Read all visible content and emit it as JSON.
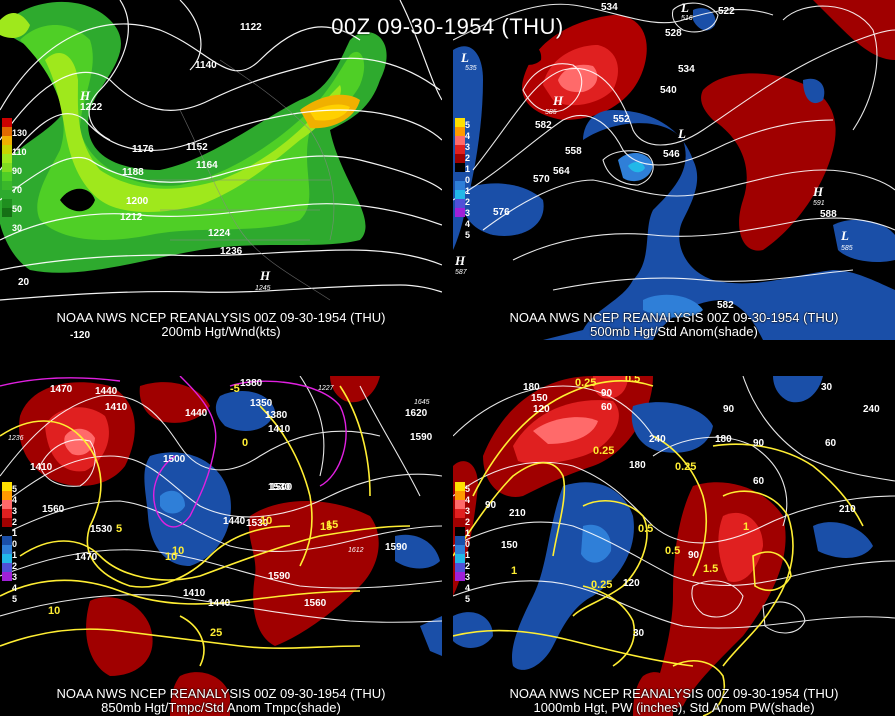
{
  "main_title": "00Z 09-30-1954 (THU)",
  "panels": [
    {
      "id": "p1",
      "caption_line1": "NOAA NWS NCEP REANALYSIS 00Z 09-30-1954 (THU)",
      "caption_line2": "200mb Hgt/Wnd(kts)",
      "legend": [
        "130",
        "110",
        "90",
        "70",
        "50",
        "30"
      ],
      "legend_colors": [
        "#cc0000",
        "#e06a00",
        "#c8d400",
        "#9fe81c",
        "#4fcf26",
        "#2eaa2e"
      ],
      "contour_labels": [
        "1122",
        "1140",
        "1222",
        "1176",
        "1152",
        "1164",
        "1188",
        "1200",
        "1212",
        "1224",
        "1236",
        "1245"
      ],
      "lon_labels": [
        "-120",
        "20"
      ],
      "highs": [
        "H",
        "H"
      ]
    },
    {
      "id": "p2",
      "caption_line1": "NOAA NWS NCEP REANALYSIS 00Z 09-30-1954 (THU)",
      "caption_line2": "500mb Hgt/Std Anom(shade)",
      "legend": [
        "5",
        "4",
        "3",
        "2",
        "1",
        "0",
        "1",
        "2",
        "3",
        "4",
        "5"
      ],
      "legend_colors": [
        "#ffe000",
        "#ff9a00",
        "#ff6a6a",
        "#e02020",
        "#a00000",
        "#000000",
        "#1a4fa8",
        "#2f7fd8",
        "#22b8e8",
        "#5050d8",
        "#a020d8"
      ],
      "contour_labels": [
        "534",
        "522",
        "516",
        "528",
        "535",
        "534",
        "540",
        "582",
        "585",
        "552",
        "546",
        "558",
        "570",
        "564",
        "576",
        "588",
        "591",
        "585",
        "587",
        "582"
      ],
      "pressure_systems": [
        "H",
        "L",
        "H",
        "L",
        "L",
        "H",
        "L"
      ]
    },
    {
      "id": "p3",
      "caption_line1": "NOAA NWS NCEP REANALYSIS 00Z 09-30-1954 (THU)",
      "caption_line2": "850mb Hgt/Tmpc/Std Anom Tmpc(shade)",
      "legend": [
        "5",
        "4",
        "3",
        "2",
        "1",
        "0",
        "1",
        "2",
        "3",
        "4",
        "5"
      ],
      "contour_labels": [
        "1470",
        "1440",
        "1410",
        "1380",
        "1350",
        "1380",
        "1410",
        "1440",
        "1620",
        "1590",
        "1410",
        "1500",
        "1530",
        "1560",
        "1470",
        "1530",
        "1500",
        "1440",
        "1530",
        "1410",
        "1440",
        "1560",
        "1590",
        "1612",
        "1590",
        "1645",
        "1227",
        "1236"
      ],
      "temp_labels": [
        "10",
        "15",
        "5",
        "10",
        "25",
        "10",
        "15",
        "0",
        "-5",
        "10"
      ]
    },
    {
      "id": "p4",
      "caption_line1": "NOAA NWS NCEP REANALYSIS 00Z 09-30-1954 (THU)",
      "caption_line2": "1000mb Hgt, PW (inches), Std Anom PW(shade)",
      "legend": [
        "5",
        "4",
        "3",
        "2",
        "1",
        "0",
        "1",
        "2",
        "3",
        "4",
        "5"
      ],
      "contour_labels": [
        "180",
        "150",
        "120",
        "90",
        "60",
        "30",
        "90",
        "240",
        "180",
        "90",
        "60",
        "240",
        "210",
        "90",
        "210",
        "60",
        "150",
        "120",
        "30",
        "90",
        "180"
      ],
      "pw_labels": [
        "0.25",
        "0.5",
        "0.25",
        "0.25",
        "0.5",
        "0.25",
        "1.5",
        "1",
        "1",
        "0.5"
      ]
    }
  ]
}
